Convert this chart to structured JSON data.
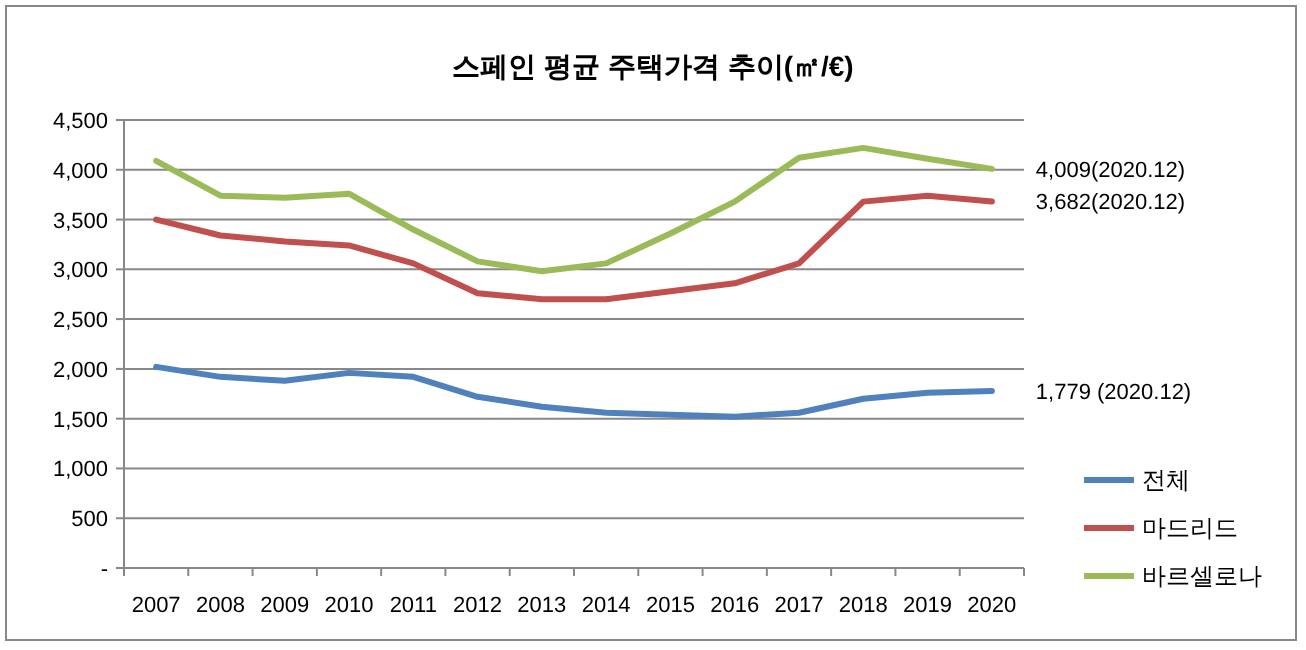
{
  "chart_data": {
    "type": "line",
    "title": "스페인 평균 주택가격 추이(㎡/€)",
    "categories": [
      "2007",
      "2008",
      "2009",
      "2010",
      "2011",
      "2012",
      "2013",
      "2014",
      "2015",
      "2016",
      "2017",
      "2018",
      "2019",
      "2020"
    ],
    "series": [
      {
        "name": "전체",
        "color": "#4f81bd",
        "values": [
          2020,
          1920,
          1880,
          1960,
          1920,
          1720,
          1620,
          1560,
          1540,
          1520,
          1560,
          1700,
          1760,
          1779
        ]
      },
      {
        "name": "마드리드",
        "color": "#c0504d",
        "values": [
          3500,
          3340,
          3280,
          3240,
          3060,
          2760,
          2700,
          2700,
          2780,
          2860,
          3060,
          3680,
          3740,
          3682
        ]
      },
      {
        "name": "바르셀로나",
        "color": "#9bbb59",
        "values": [
          4090,
          3740,
          3720,
          3760,
          3400,
          3080,
          2980,
          3060,
          3360,
          3680,
          4120,
          4220,
          4110,
          4009
        ]
      }
    ],
    "ylim": [
      0,
      4500
    ],
    "yticks": [
      {
        "value": 0,
        "label": "-"
      },
      {
        "value": 500,
        "label": "500"
      },
      {
        "value": 1000,
        "label": "1,000"
      },
      {
        "value": 1500,
        "label": "1,500"
      },
      {
        "value": 2000,
        "label": "2,000"
      },
      {
        "value": 2500,
        "label": "2,500"
      },
      {
        "value": 3000,
        "label": "3,000"
      },
      {
        "value": 3500,
        "label": "3,500"
      },
      {
        "value": 4000,
        "label": "4,000"
      },
      {
        "value": 4500,
        "label": "4,500"
      }
    ],
    "grid": "y",
    "legend": "right",
    "marker": "none",
    "line_style": "solid",
    "annotations": [
      {
        "text": "4,009(2020.12)",
        "x": "2020",
        "y": 4009
      },
      {
        "text": "3,682(2020.12)",
        "x": "2020",
        "y": 3682
      },
      {
        "text": "1,779 (2020.12)",
        "x": "2020",
        "y": 1779
      }
    ]
  }
}
